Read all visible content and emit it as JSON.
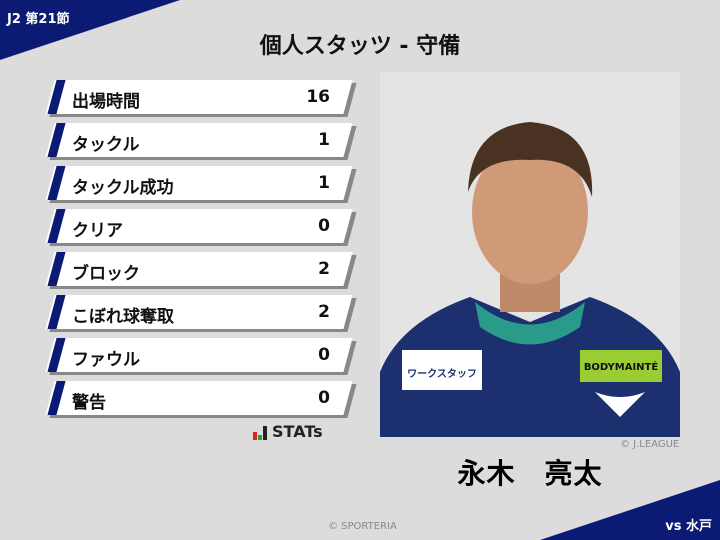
{
  "header": {
    "round": "J2 第21節",
    "title": "個人スタッツ - 守備",
    "opponent": "vs 水戸"
  },
  "stats": [
    {
      "label": "出場時間",
      "value": "16"
    },
    {
      "label": "タックル",
      "value": "1"
    },
    {
      "label": "タックル成功",
      "value": "1"
    },
    {
      "label": "クリア",
      "value": "0"
    },
    {
      "label": "ブロック",
      "value": "2"
    },
    {
      "label": "こぼれ球奪取",
      "value": "2"
    },
    {
      "label": "ファウル",
      "value": "0"
    },
    {
      "label": "警告",
      "value": "0"
    }
  ],
  "logo": {
    "text": "STATs"
  },
  "player": {
    "name": "永木　亮太",
    "photo_credit": "© J.LEAGUE",
    "sponsor_chest": "ワークスタッフ",
    "sponsor_sleeve": "BODYMAINTÉ"
  },
  "footer": {
    "copyright": "© SPORTERIA"
  },
  "colors": {
    "navy": "#0b1b73",
    "background": "#dcdcdc"
  }
}
